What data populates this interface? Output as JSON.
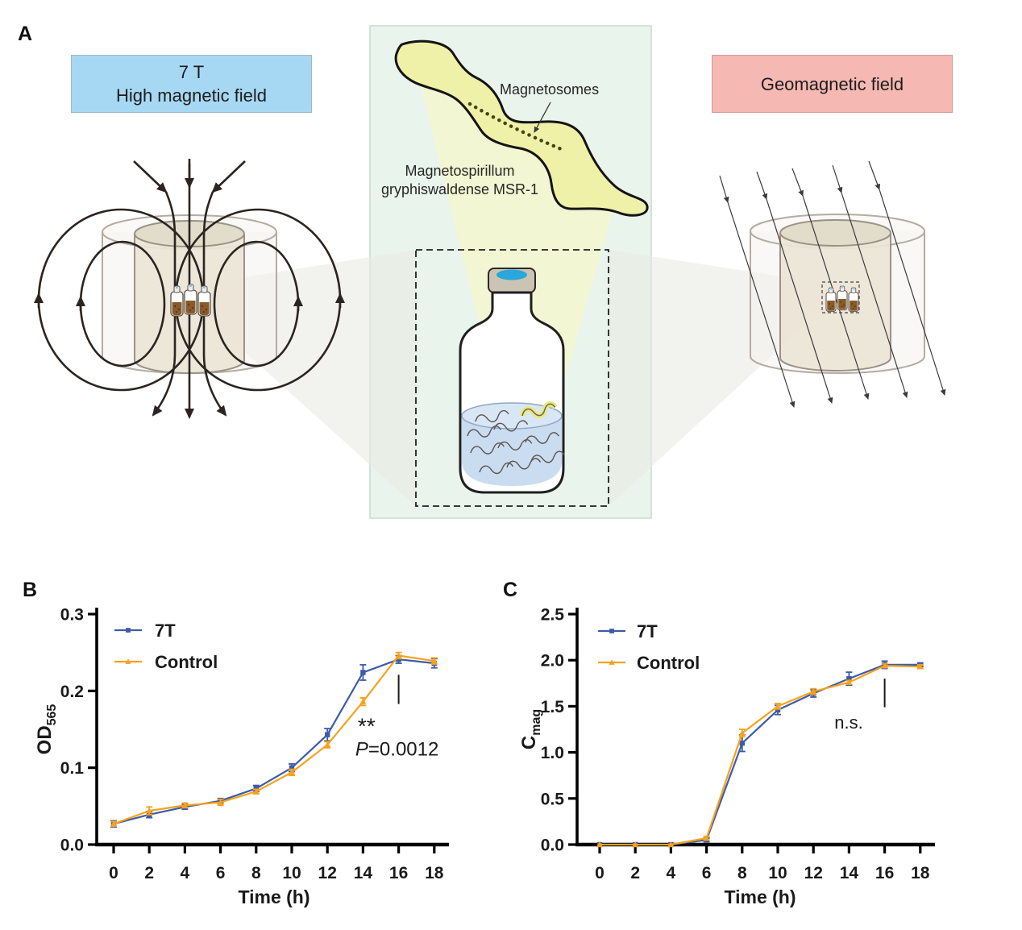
{
  "panelA": {
    "label": "A",
    "high_field_box": {
      "line1": "7 T",
      "line2": "High magnetic field",
      "bg": "#A7D8F3"
    },
    "geo_field_box": {
      "label": "Geomagnetic field",
      "bg": "#F5B8B2"
    },
    "magnetosomes_label": "Magnetosomes",
    "species": {
      "line1": "Magnetospirillum",
      "line2": "gryphiswaldense MSR-1"
    },
    "colors": {
      "panel_bg": "#E9F4EC",
      "bacterium": "#F0F1A8",
      "beam_yellow": "#F7F7C9",
      "beam_gray": "#E9E9E5",
      "liquid": "#CADCF0",
      "bottle_cap": "#CBC4B4",
      "cap_blue": "#2AA7DB",
      "cylinder_outer": "#F5F3EE",
      "cylinder_inner": "#EBE5D6",
      "vial_content": "#8A5A28"
    }
  },
  "panelB": {
    "label": "B"
  },
  "panelC": {
    "label": "C"
  },
  "chart_data": [
    {
      "panel": "B",
      "type": "line",
      "x": [
        0,
        2,
        4,
        6,
        8,
        10,
        12,
        14,
        16,
        18
      ],
      "xlabel": "Time (h)",
      "ylabel_main": "OD",
      "ylabel_sub": "565",
      "ylim": [
        0,
        0.3
      ],
      "xticks": [
        "0",
        "2",
        "4",
        "6",
        "8",
        "10",
        "12",
        "14",
        "16",
        "18"
      ],
      "yticks": [
        "0.0",
        "0.1",
        "0.2",
        "0.3"
      ],
      "ytick_vals": [
        0,
        0.1,
        0.2,
        0.3
      ],
      "grid": false,
      "legend_position": "top-left",
      "series": [
        {
          "name": "7T",
          "color": "#3C5BA8",
          "marker": "square",
          "values": [
            0.027,
            0.039,
            0.049,
            0.057,
            0.073,
            0.1,
            0.143,
            0.224,
            0.241,
            0.236
          ],
          "errors": [
            0.004,
            0.004,
            0.003,
            0.003,
            0.004,
            0.005,
            0.008,
            0.01,
            0.005,
            0.006
          ]
        },
        {
          "name": "Control",
          "color": "#F6A21E",
          "marker": "triangle",
          "values": [
            0.027,
            0.044,
            0.051,
            0.055,
            0.069,
            0.094,
            0.13,
            0.186,
            0.246,
            0.239
          ],
          "errors": [
            0.003,
            0.005,
            0.003,
            0.004,
            0.003,
            0.004,
            0.004,
            0.005,
            0.004,
            0.004
          ]
        }
      ],
      "annotation": {
        "sig_line": {
          "x": 16,
          "y_from": 0.183,
          "y_to": 0.221
        },
        "star_text": "**",
        "star_at": [
          14.2,
          0.144
        ],
        "p_italic": "P",
        "p_text": "=0.0012",
        "p_at": [
          13.57,
          0.116
        ]
      }
    },
    {
      "panel": "C",
      "type": "line",
      "x": [
        0,
        2,
        4,
        6,
        8,
        10,
        12,
        14,
        16,
        18
      ],
      "xlabel": "Time (h)",
      "ylabel_main": "C",
      "ylabel_sub": "mag",
      "ylim": [
        0,
        2.5
      ],
      "xticks": [
        "0",
        "2",
        "4",
        "6",
        "8",
        "10",
        "12",
        "14",
        "16",
        "18"
      ],
      "yticks": [
        "0.0",
        "0.5",
        "1.0",
        "1.5",
        "2.0",
        "2.5"
      ],
      "ytick_vals": [
        0,
        0.5,
        1.0,
        1.5,
        2.0,
        2.5
      ],
      "grid": false,
      "legend_position": "top-left",
      "series": [
        {
          "name": "7T",
          "color": "#3C5BA8",
          "marker": "square",
          "values": [
            0,
            0,
            0,
            0.05,
            1.1,
            1.46,
            1.64,
            1.8,
            1.95,
            1.95
          ],
          "errors": [
            0,
            0,
            0,
            0.02,
            0.09,
            0.05,
            0.04,
            0.07,
            0.04,
            0.02
          ]
        },
        {
          "name": "Control",
          "color": "#F6A21E",
          "marker": "triangle",
          "values": [
            0,
            0,
            0,
            0.07,
            1.21,
            1.5,
            1.66,
            1.76,
            1.94,
            1.93
          ],
          "errors": [
            0,
            0,
            0,
            0.02,
            0.04,
            0.03,
            0.03,
            0.02,
            0.02,
            0.02
          ]
        }
      ],
      "annotation": {
        "sig_line": {
          "x": 16,
          "y_from": 1.49,
          "y_to": 1.8
        },
        "ns_text": "n.s.",
        "ns_at": [
          13.98,
          1.26
        ]
      }
    }
  ]
}
